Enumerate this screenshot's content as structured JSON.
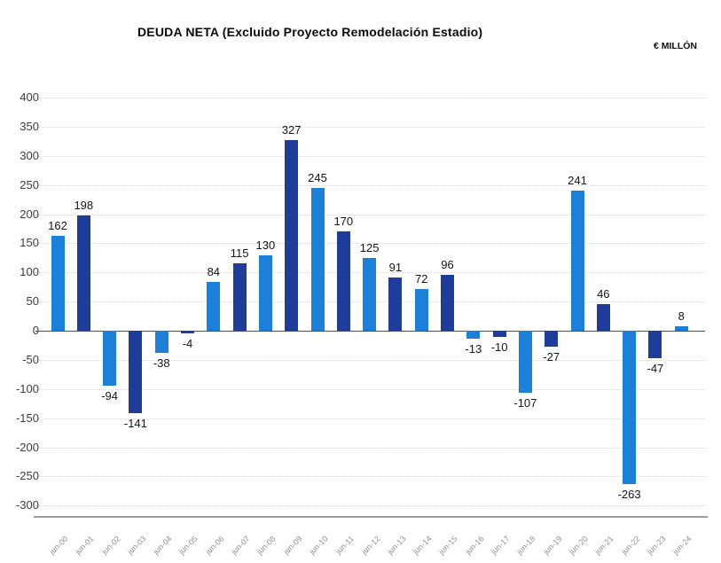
{
  "chart": {
    "title": "DEUDA NETA (Excluido Proyecto Remodelación Estadio)",
    "unit_label": "€ MILLÓN"
  },
  "chart_data": {
    "type": "bar",
    "title": "DEUDA NETA (Excluido Proyecto Remodelación Estadio)",
    "unit": "€ MILLÓN",
    "categories": [
      "jun-00",
      "jun-01",
      "jun-02",
      "jun-03",
      "jun-04",
      "jun-05",
      "jun-06",
      "jun-07",
      "jun-08",
      "jun-09",
      "jun-10",
      "jun-11",
      "jun-12",
      "jun-13",
      "jun-14",
      "jun-15",
      "jun-16",
      "jun-17",
      "jun-18",
      "jun-19",
      "jun-20",
      "jun-21",
      "jun-22",
      "jun-23",
      "jun-24"
    ],
    "values": [
      162,
      198,
      -94,
      -141,
      -38,
      -4,
      84,
      115,
      130,
      327,
      245,
      170,
      125,
      91,
      72,
      96,
      -13,
      -10,
      -107,
      -27,
      241,
      46,
      -263,
      -47,
      8
    ],
    "bar_color_even": "#1B80D9",
    "bar_color_odd": "#1E3D9B",
    "ylim": [
      -300,
      400
    ],
    "ytick_step": 50,
    "yticks": [
      400,
      350,
      300,
      250,
      200,
      150,
      100,
      50,
      0,
      -50,
      -100,
      -150,
      -200,
      -250,
      -300
    ],
    "grid": "dotted-horizontal",
    "legend": "none",
    "value_labels": "outside-end",
    "xlabel": "",
    "ylabel": ""
  }
}
